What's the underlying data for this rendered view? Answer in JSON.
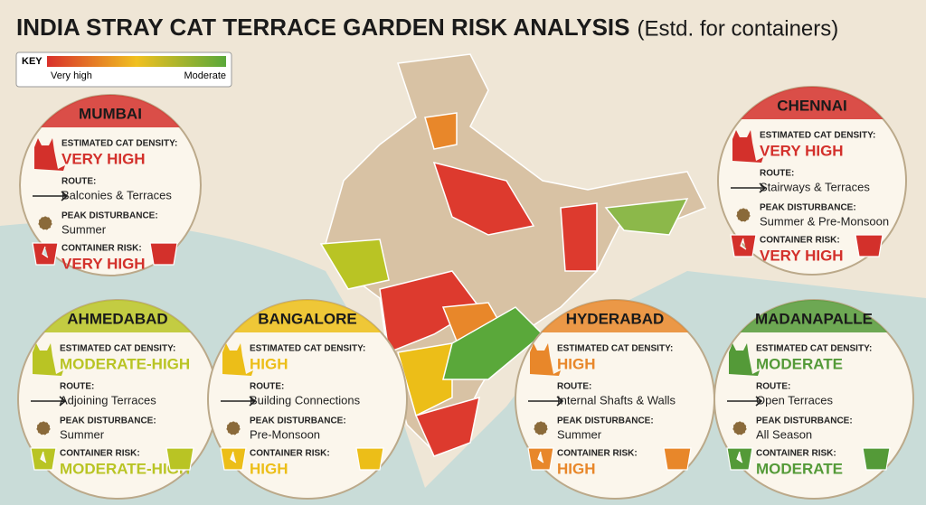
{
  "title": "INDIA STRAY CAT TERRACE GARDEN RISK ANALYSIS",
  "subtitle": "(Estd. for containers)",
  "key": {
    "label": "KEY",
    "high": "Very high",
    "low": "Moderate",
    "high_color": "#d9302a",
    "low_color": "#5aa83a"
  },
  "cities": [
    {
      "name": "MUMBAI",
      "color": "#d3302b",
      "density_label": "ESTIMATED CAT DENSITY:",
      "density": "VERY HIGH",
      "route_label": "ROUTE:",
      "route": "Balconies & Terraces",
      "peak_label": "PEAK DISTURBANCE:",
      "peak": "Summer",
      "risk_label": "CONTAINER RISK:",
      "risk": "VERY HIGH"
    },
    {
      "name": "CHENNAI",
      "color": "#d3302b",
      "density_label": "ESTIMATED CAT DENSITY:",
      "density": "VERY HIGH",
      "route_label": "ROUTE:",
      "route": "Stairways & Terraces",
      "peak_label": "PEAK DISTURBANCE:",
      "peak": "Summer & Pre-Monsoon",
      "risk_label": "CONTAINER RISK:",
      "risk": "VERY HIGH"
    },
    {
      "name": "AHMEDABAD",
      "color": "#b9c424",
      "density_label": "ESTIMATED CAT DENSITY:",
      "density": "MODERATE-HIGH",
      "route_label": "ROUTE:",
      "route": "Adjoining Terraces",
      "peak_label": "PEAK DISTURBANCE:",
      "peak": "Summer",
      "risk_label": "CONTAINER RISK:",
      "risk": "MODERATE-HIGH"
    },
    {
      "name": "BANGALORE",
      "color": "#ecbe18",
      "density_label": "ESTIMATED CAT DENSITY:",
      "density": "HIGH",
      "route_label": "ROUTE:",
      "route": "Building Connections",
      "peak_label": "PEAK DISTURBANCE:",
      "peak": "Pre-Monsoon",
      "risk_label": "CONTAINER RISK:",
      "risk": "HIGH"
    },
    {
      "name": "HYDERABAD",
      "color": "#e8872a",
      "density_label": "ESTIMATED CAT DENSITY:",
      "density": "HIGH",
      "route_label": "ROUTE:",
      "route": "Internal Shafts & Walls",
      "peak_label": "PEAK DISTURBANCE:",
      "peak": "Summer",
      "risk_label": "CONTAINER RISK:",
      "risk": "HIGH"
    },
    {
      "name": "MADANAPALLE",
      "color": "#549a38",
      "density_label": "ESTIMATED CAT DENSITY:",
      "density": "MODERATE",
      "route_label": "ROUTE:",
      "route": "Open Terraces",
      "peak_label": "PEAK DISTURBANCE:",
      "peak": "All Season",
      "risk_label": "CONTAINER RISK:",
      "risk": "MODERATE"
    }
  ]
}
